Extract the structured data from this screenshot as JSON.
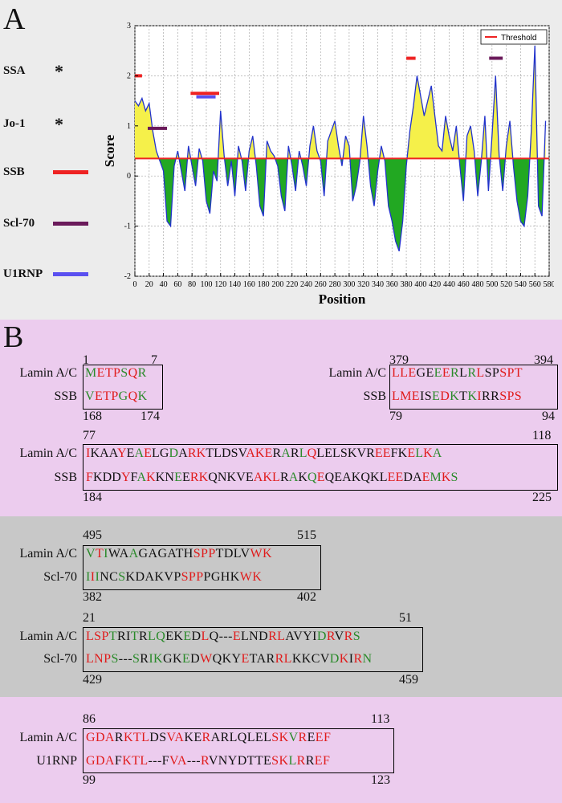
{
  "panelA": {
    "letter": "A",
    "legend": [
      {
        "label": "SSA",
        "marker": "*",
        "color": null
      },
      {
        "label": "Jo-1",
        "marker": "*",
        "color": null
      },
      {
        "label": "SSB",
        "marker": "bar",
        "color": "#ee2222"
      },
      {
        "label": "Scl-70",
        "marker": "bar",
        "color": "#6a1a5a"
      },
      {
        "label": "U1RNP",
        "marker": "bar",
        "color": "#5a50f0"
      }
    ]
  },
  "chart_data": {
    "type": "area",
    "xlabel": "Position",
    "ylabel": "Score",
    "xlim": [
      0,
      580
    ],
    "ylim": [
      -2,
      3
    ],
    "xticks": [
      "0",
      "20",
      "40",
      "60",
      "80",
      "100",
      "120",
      "140",
      "160",
      "180",
      "200",
      "220",
      "240",
      "260",
      "280",
      "300",
      "320",
      "340",
      "360",
      "380",
      "400",
      "420",
      "440",
      "460",
      "480",
      "500",
      "520",
      "540",
      "560",
      "580"
    ],
    "yticks": [
      "-2",
      "-1",
      "0",
      "1",
      "2",
      "3"
    ],
    "grid": true,
    "legend": {
      "label": "Threshold",
      "placement": "top-right"
    },
    "threshold": 0.35,
    "threshold_color": "#ee2222",
    "above_fill": "#f5f04a",
    "below_fill": "#22a822",
    "line_color": "#2233cc",
    "series": [
      {
        "x": [
          0,
          5,
          10,
          15,
          20,
          25,
          30,
          35,
          40,
          45,
          50,
          55,
          60,
          65,
          70,
          75,
          80,
          85,
          90,
          95,
          100,
          105,
          110,
          115,
          120,
          125,
          130,
          135,
          140,
          145,
          150,
          155,
          160,
          165,
          170,
          175,
          180,
          185,
          190,
          195,
          200,
          205,
          210,
          215,
          220,
          225,
          230,
          235,
          240,
          245,
          250,
          255,
          260,
          265,
          270,
          275,
          280,
          285,
          290,
          295,
          300,
          305,
          310,
          315,
          320,
          325,
          330,
          335,
          340,
          345,
          350,
          355,
          360,
          365,
          370,
          375,
          380,
          385,
          390,
          395,
          400,
          405,
          410,
          415,
          420,
          425,
          430,
          435,
          440,
          445,
          450,
          455,
          460,
          465,
          470,
          475,
          480,
          485,
          490,
          495,
          500,
          505,
          510,
          515,
          520,
          525,
          530,
          535,
          540,
          545,
          550,
          555,
          560,
          565,
          570,
          575
        ],
        "y": [
          1.5,
          1.4,
          1.55,
          1.3,
          1.45,
          0.9,
          0.5,
          0.3,
          0.1,
          -0.9,
          -1.0,
          0.2,
          0.5,
          0.1,
          -0.3,
          0.6,
          0.2,
          -0.2,
          0.55,
          0.3,
          -0.5,
          -0.75,
          0.1,
          -0.1,
          1.3,
          0.4,
          -0.2,
          0.3,
          -0.4,
          0.6,
          0.3,
          -0.3,
          0.5,
          0.8,
          0.2,
          -0.6,
          -0.8,
          0.7,
          0.5,
          0.4,
          0.2,
          -0.4,
          -0.7,
          0.6,
          0.2,
          -0.3,
          0.5,
          0.2,
          -0.2,
          0.6,
          1.0,
          0.5,
          0.3,
          -0.4,
          0.7,
          0.9,
          1.1,
          0.6,
          0.2,
          0.8,
          0.6,
          -0.5,
          -0.2,
          0.3,
          1.2,
          0.6,
          -0.2,
          -0.6,
          0.1,
          0.6,
          0.3,
          -0.6,
          -0.9,
          -1.3,
          -1.5,
          -0.9,
          0.2,
          0.9,
          1.4,
          2.0,
          1.6,
          1.2,
          1.5,
          1.8,
          1.2,
          0.6,
          0.5,
          1.2,
          0.8,
          0.5,
          1.0,
          0.2,
          -0.5,
          0.8,
          1.0,
          0.5,
          -0.4,
          0.3,
          1.2,
          -0.3,
          0.8,
          2.0,
          0.4,
          -0.3,
          0.6,
          1.1,
          0.2,
          -0.5,
          -0.9,
          -1.0,
          -0.4,
          0.9,
          2.6,
          -0.6,
          -0.8,
          1.1
        ]
      }
    ],
    "epitope_bars": [
      {
        "from": 0,
        "to": 10,
        "y": 2.0,
        "color": "#ee2222"
      },
      {
        "from": 18,
        "to": 45,
        "y": 0.95,
        "color": "#6a1a5a"
      },
      {
        "from": 78,
        "to": 118,
        "y": 1.65,
        "color": "#ee2222"
      },
      {
        "from": 86,
        "to": 113,
        "y": 1.58,
        "color": "#5a50f0"
      },
      {
        "from": 380,
        "to": 393,
        "y": 2.35,
        "color": "#ee2222"
      },
      {
        "from": 496,
        "to": 515,
        "y": 2.35,
        "color": "#6a1a5a"
      }
    ]
  },
  "panelB": {
    "letter": "B",
    "alignments": [
      {
        "id": "a1",
        "top_start": "1",
        "top_end": "7",
        "bot_start": "168",
        "bot_end": "174",
        "label1": "Lamin A/C",
        "label2": "SSB",
        "seq1": [
          [
            "g",
            "M"
          ],
          [
            "r",
            "ETP"
          ],
          [
            "g",
            "S"
          ],
          [
            "r",
            "Q"
          ],
          [
            "g",
            "R"
          ]
        ],
        "seq2": [
          [
            "g",
            "V"
          ],
          [
            "r",
            "ETP"
          ],
          [
            "g",
            "G"
          ],
          [
            "r",
            "Q"
          ],
          [
            "g",
            "K"
          ]
        ]
      },
      {
        "id": "a2",
        "top_start": "379",
        "top_end": "394",
        "bot_start": "79",
        "bot_end": "94",
        "label1": "Lamin A/C",
        "label2": "SSB",
        "seq1": [
          [
            "r",
            "LLE"
          ],
          [
            "k",
            "GE"
          ],
          [
            "g",
            "E"
          ],
          [
            "r",
            "E"
          ],
          [
            "g",
            "R"
          ],
          [
            "k",
            "L"
          ],
          [
            "g",
            "R"
          ],
          [
            "r",
            "L"
          ],
          [
            "k",
            "SP"
          ],
          [
            "r",
            "SPT"
          ]
        ],
        "seq2": [
          [
            "r",
            "LME"
          ],
          [
            "k",
            "IS"
          ],
          [
            "g",
            "E"
          ],
          [
            "r",
            "D"
          ],
          [
            "g",
            "K"
          ],
          [
            "k",
            "T"
          ],
          [
            "g",
            "K"
          ],
          [
            "r",
            "I"
          ],
          [
            "k",
            "RR"
          ],
          [
            "r",
            "SPS"
          ]
        ]
      },
      {
        "id": "a3",
        "top_start": "77",
        "top_end": "118",
        "bot_start": "184",
        "bot_end": "225",
        "label1": "Lamin A/C",
        "label2": "SSB",
        "seq1": [
          [
            "r",
            "I"
          ],
          [
            "k",
            "KAA"
          ],
          [
            "r",
            "Y"
          ],
          [
            "k",
            "E"
          ],
          [
            "g",
            "A"
          ],
          [
            "r",
            "E"
          ],
          [
            "k",
            "LG"
          ],
          [
            "g",
            "D"
          ],
          [
            "k",
            "A"
          ],
          [
            "r",
            "RK"
          ],
          [
            "k",
            "TLDSV"
          ],
          [
            "r",
            "AKE"
          ],
          [
            "k",
            "R"
          ],
          [
            "g",
            "A"
          ],
          [
            "k",
            "R"
          ],
          [
            "g",
            "L"
          ],
          [
            "r",
            "Q"
          ],
          [
            "k",
            "LELSKVR"
          ],
          [
            "r",
            "EE"
          ],
          [
            "k",
            "FK"
          ],
          [
            "r",
            "E"
          ],
          [
            "g",
            "L"
          ],
          [
            "r",
            "K"
          ],
          [
            "g",
            "A"
          ]
        ],
        "seq2": [
          [
            "r",
            "F"
          ],
          [
            "k",
            "KDD"
          ],
          [
            "r",
            "Y"
          ],
          [
            "k",
            "F"
          ],
          [
            "g",
            "A"
          ],
          [
            "r",
            "K"
          ],
          [
            "k",
            "KN"
          ],
          [
            "g",
            "E"
          ],
          [
            "k",
            "E"
          ],
          [
            "r",
            "RK"
          ],
          [
            "k",
            "QNKVE"
          ],
          [
            "r",
            "AKL"
          ],
          [
            "k",
            "R"
          ],
          [
            "g",
            "A"
          ],
          [
            "k",
            "K"
          ],
          [
            "g",
            "Q"
          ],
          [
            "r",
            "E"
          ],
          [
            "k",
            "QEAKQKL"
          ],
          [
            "r",
            "EE"
          ],
          [
            "k",
            "DA"
          ],
          [
            "r",
            "E"
          ],
          [
            "g",
            "M"
          ],
          [
            "r",
            "K"
          ],
          [
            "g",
            "S"
          ]
        ]
      },
      {
        "id": "a4",
        "top_start": "495",
        "top_end": "515",
        "bot_start": "382",
        "bot_end": "402",
        "label1": "Lamin A/C",
        "label2": "Scl-70",
        "seq1": [
          [
            "g",
            "V"
          ],
          [
            "r",
            "T"
          ],
          [
            "g",
            "I"
          ],
          [
            "k",
            "WA"
          ],
          [
            "g",
            "A"
          ],
          [
            "k",
            "GAGATH"
          ],
          [
            "r",
            "SPP"
          ],
          [
            "k",
            "TDLV"
          ],
          [
            "r",
            "WK"
          ]
        ],
        "seq2": [
          [
            "g",
            "I"
          ],
          [
            "r",
            "I"
          ],
          [
            "g",
            "I"
          ],
          [
            "k",
            "NC"
          ],
          [
            "g",
            "S"
          ],
          [
            "k",
            "KDAKVP"
          ],
          [
            "r",
            "SPP"
          ],
          [
            "k",
            "PGHK"
          ],
          [
            "r",
            "WK"
          ]
        ]
      },
      {
        "id": "a5",
        "top_start": "21",
        "top_end": "51",
        "bot_start": "429",
        "bot_end": "459",
        "label1": "Lamin A/C",
        "label2": "Scl-70",
        "seq1": [
          [
            "r",
            "LSP"
          ],
          [
            "g",
            "T"
          ],
          [
            "k",
            "RI"
          ],
          [
            "g",
            "T"
          ],
          [
            "k",
            "R"
          ],
          [
            "g",
            "LQ"
          ],
          [
            "k",
            "EK"
          ],
          [
            "g",
            "E"
          ],
          [
            "k",
            "D"
          ],
          [
            "r",
            "L"
          ],
          [
            "k",
            "Q---"
          ],
          [
            "r",
            "E"
          ],
          [
            "k",
            "LND"
          ],
          [
            "r",
            "RL"
          ],
          [
            "k",
            "AVYI"
          ],
          [
            "g",
            "D"
          ],
          [
            "r",
            "R"
          ],
          [
            "k",
            "V"
          ],
          [
            "r",
            "R"
          ],
          [
            "g",
            "S"
          ]
        ],
        "seq2": [
          [
            "r",
            "LNP"
          ],
          [
            "g",
            "S"
          ],
          [
            "k",
            "---"
          ],
          [
            "g",
            "S"
          ],
          [
            "k",
            "R"
          ],
          [
            "g",
            "IK"
          ],
          [
            "k",
            "GK"
          ],
          [
            "g",
            "E"
          ],
          [
            "k",
            "D"
          ],
          [
            "r",
            "W"
          ],
          [
            "k",
            "QKY"
          ],
          [
            "r",
            "E"
          ],
          [
            "k",
            "TAR"
          ],
          [
            "r",
            "RL"
          ],
          [
            "k",
            "KKCV"
          ],
          [
            "g",
            "D"
          ],
          [
            "r",
            "K"
          ],
          [
            "k",
            "I"
          ],
          [
            "r",
            "R"
          ],
          [
            "g",
            "N"
          ]
        ]
      },
      {
        "id": "a6",
        "top_start": "86",
        "top_end": "113",
        "bot_start": "99",
        "bot_end": "123",
        "label1": "Lamin A/C",
        "label2": "U1RNP",
        "seq1": [
          [
            "r",
            "GDA"
          ],
          [
            "k",
            "R"
          ],
          [
            "r",
            "KTL"
          ],
          [
            "k",
            "DS"
          ],
          [
            "r",
            "VA"
          ],
          [
            "k",
            "KE"
          ],
          [
            "r",
            "R"
          ],
          [
            "k",
            "ARLQLEL"
          ],
          [
            "r",
            "SK"
          ],
          [
            "g",
            "V"
          ],
          [
            "r",
            "R"
          ],
          [
            "k",
            "E"
          ],
          [
            "r",
            "EF"
          ]
        ],
        "seq2": [
          [
            "r",
            "GDA"
          ],
          [
            "k",
            "F"
          ],
          [
            "r",
            "KTL"
          ],
          [
            "k",
            "---F"
          ],
          [
            "r",
            "VA"
          ],
          [
            "k",
            "---"
          ],
          [
            "r",
            "R"
          ],
          [
            "k",
            "VNYDTTE"
          ],
          [
            "r",
            "SK"
          ],
          [
            "g",
            "L"
          ],
          [
            "r",
            "R"
          ],
          [
            "k",
            "R"
          ],
          [
            "r",
            "EF"
          ]
        ]
      }
    ]
  }
}
